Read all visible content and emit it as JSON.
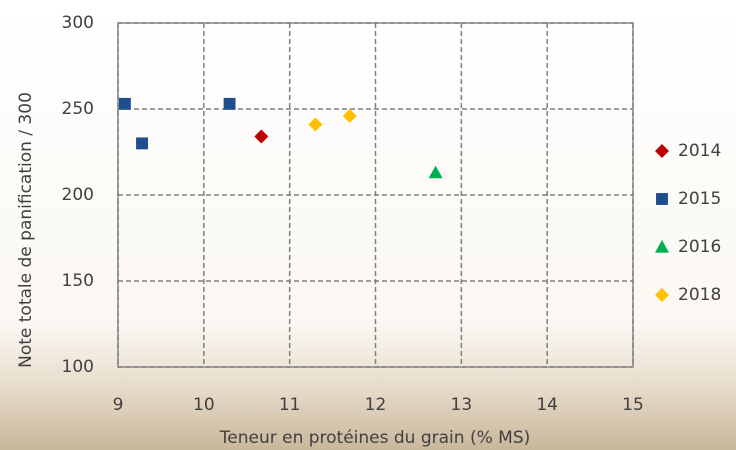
{
  "chart_data": {
    "type": "scatter",
    "x_label": "Teneur en protéines du grain (% MS)",
    "y_label": "Note totale de panification / 300",
    "xlim": [
      9,
      15
    ],
    "xticks": [
      9,
      10,
      11,
      12,
      13,
      14,
      15
    ],
    "ylim": [
      100,
      300
    ],
    "yticks": [
      100,
      150,
      200,
      250,
      300
    ],
    "grid": true,
    "legend": "right",
    "series": [
      {
        "name": "2014",
        "color": "#c00000",
        "marker": "diamond",
        "x": [
          10.67
        ],
        "values": [
          234
        ]
      },
      {
        "name": "2015",
        "color": "#1f4e8c",
        "marker": "square",
        "x": [
          9.08,
          9.28,
          10.3
        ],
        "values": [
          253,
          230,
          253
        ]
      },
      {
        "name": "2016",
        "color": "#00b050",
        "marker": "triangle",
        "x": [
          12.7
        ],
        "values": [
          213
        ]
      },
      {
        "name": "2018",
        "color": "#ffc000",
        "marker": "diamond",
        "x": [
          11.3,
          11.7
        ],
        "values": [
          241,
          246
        ]
      }
    ]
  }
}
